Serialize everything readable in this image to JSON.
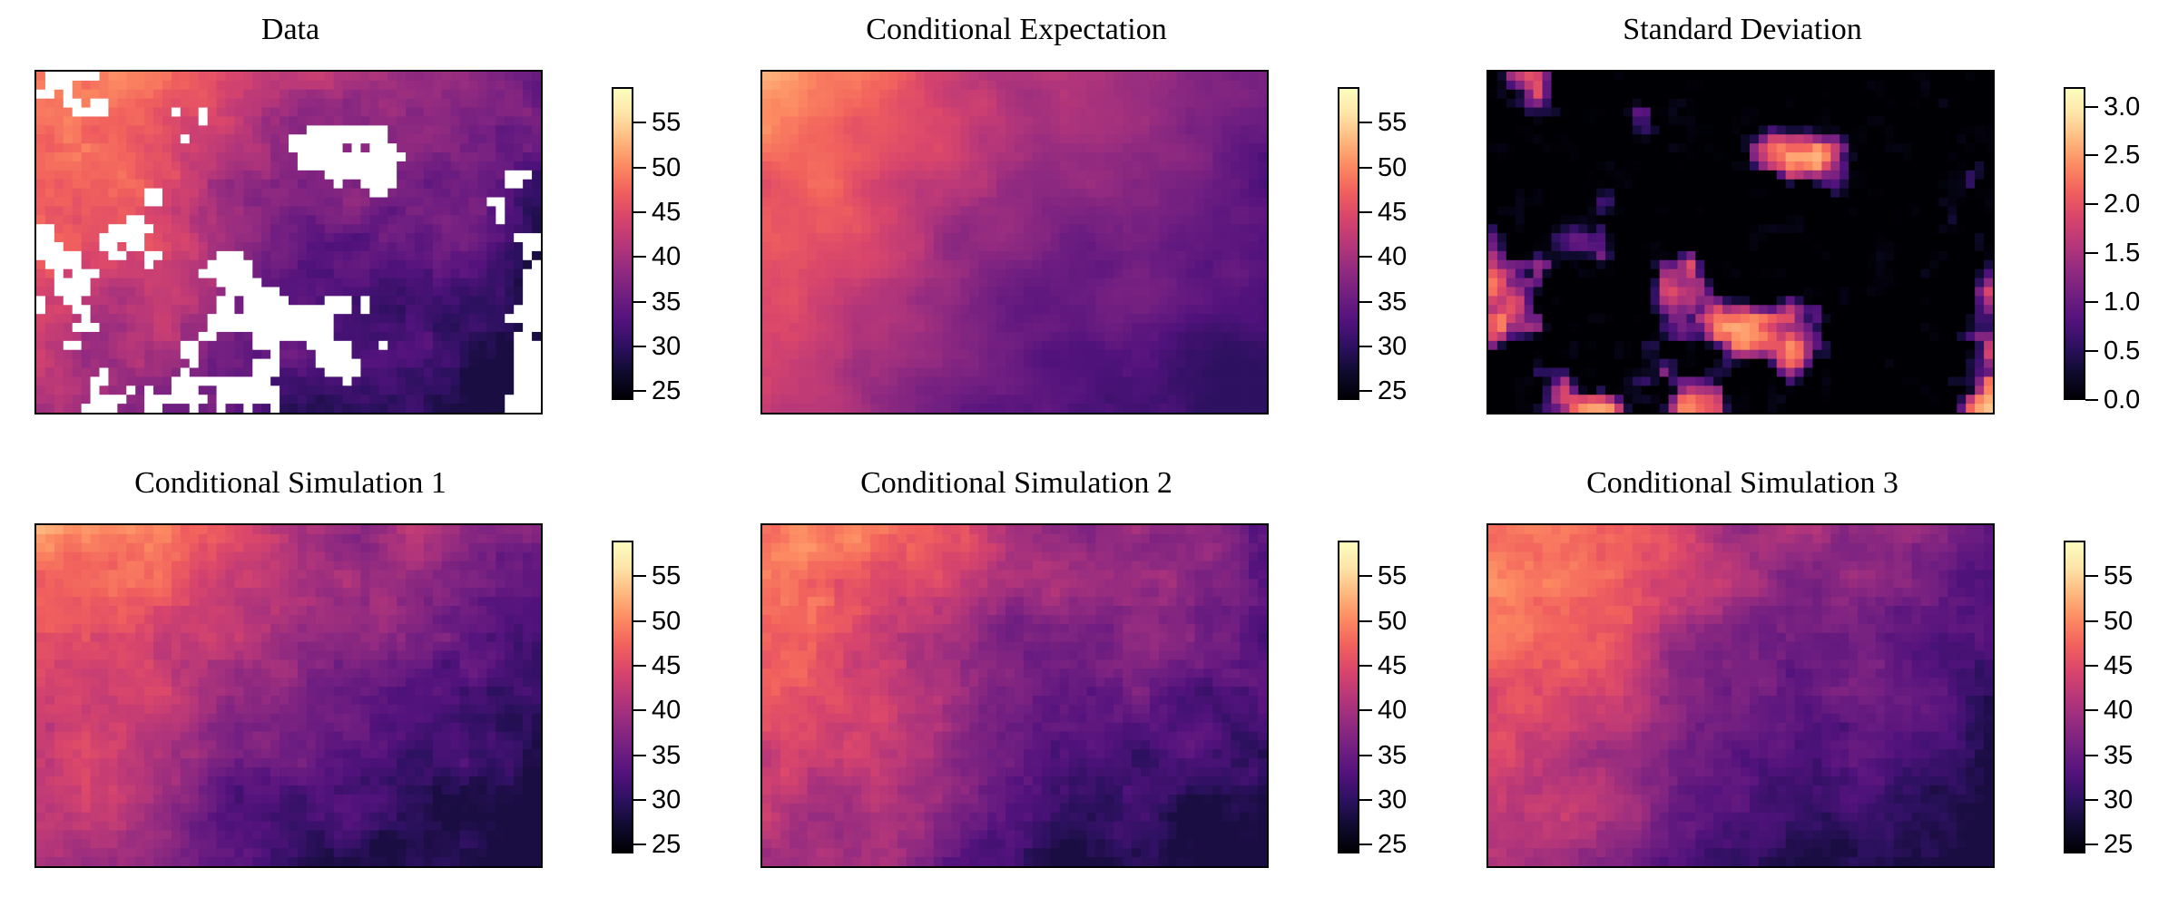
{
  "chart_data": [
    {
      "type": "heatmap",
      "title": "Data",
      "colormap": "magma",
      "colorbar_range": [
        24,
        59
      ],
      "colorbar_ticks": [
        "25",
        "30",
        "35",
        "40",
        "45",
        "50",
        "55"
      ],
      "has_missing_values": true,
      "missing_color": "#ffffff",
      "field_range": [
        28,
        56
      ]
    },
    {
      "type": "heatmap",
      "title": "Conditional Expectation",
      "colormap": "magma",
      "colorbar_range": [
        24,
        59
      ],
      "colorbar_ticks": [
        "25",
        "30",
        "35",
        "40",
        "45",
        "50",
        "55"
      ],
      "has_missing_values": false,
      "field_range": [
        30,
        55
      ]
    },
    {
      "type": "heatmap",
      "title": "Standard Deviation",
      "colormap": "magma",
      "colorbar_range": [
        0,
        3.2
      ],
      "colorbar_ticks": [
        "0.0",
        "0.5",
        "1.0",
        "1.5",
        "2.0",
        "2.5",
        "3.0"
      ],
      "has_missing_values": false,
      "field_range": [
        0,
        3.1
      ]
    },
    {
      "type": "heatmap",
      "title": "Conditional Simulation 1",
      "colormap": "magma",
      "colorbar_range": [
        24,
        59
      ],
      "colorbar_ticks": [
        "25",
        "30",
        "35",
        "40",
        "45",
        "50",
        "55"
      ],
      "has_missing_values": false,
      "field_range": [
        28,
        56
      ]
    },
    {
      "type": "heatmap",
      "title": "Conditional Simulation 2",
      "colormap": "magma",
      "colorbar_range": [
        24,
        59
      ],
      "colorbar_ticks": [
        "25",
        "30",
        "35",
        "40",
        "45",
        "50",
        "55"
      ],
      "has_missing_values": false,
      "field_range": [
        28,
        56
      ]
    },
    {
      "type": "heatmap",
      "title": "Conditional Simulation 3",
      "colormap": "magma",
      "colorbar_range": [
        24,
        59
      ],
      "colorbar_ticks": [
        "25",
        "30",
        "35",
        "40",
        "45",
        "50",
        "55"
      ],
      "has_missing_values": false,
      "field_range": [
        28,
        56
      ]
    }
  ]
}
